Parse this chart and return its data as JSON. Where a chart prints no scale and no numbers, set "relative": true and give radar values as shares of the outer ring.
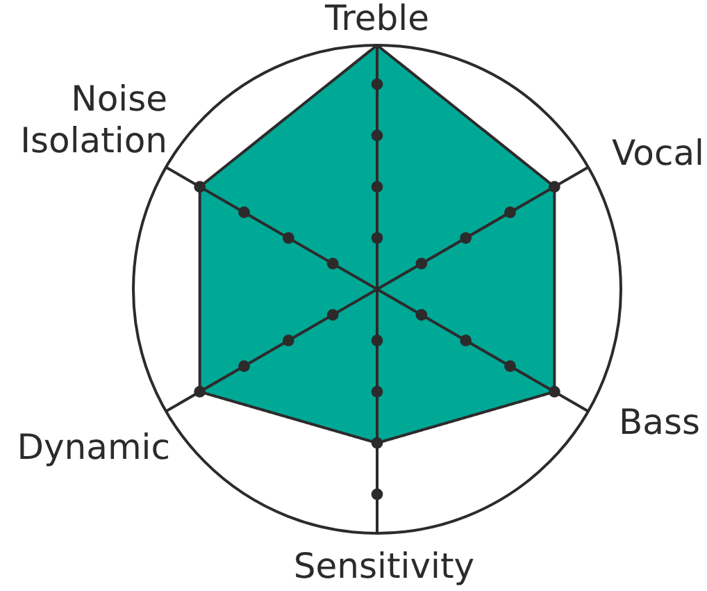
{
  "chart_data": {
    "type": "radar",
    "relative": true,
    "grid": true,
    "categories": [
      "Treble",
      "Vocal",
      "Bass",
      "Sensitivity",
      "Dynamic",
      "Noise Isolation"
    ],
    "series": [
      {
        "color": "#00a896",
        "values": [
          1,
          0.84,
          0.84,
          0.63,
          0.84,
          0.84
        ]
      }
    ]
  }
}
